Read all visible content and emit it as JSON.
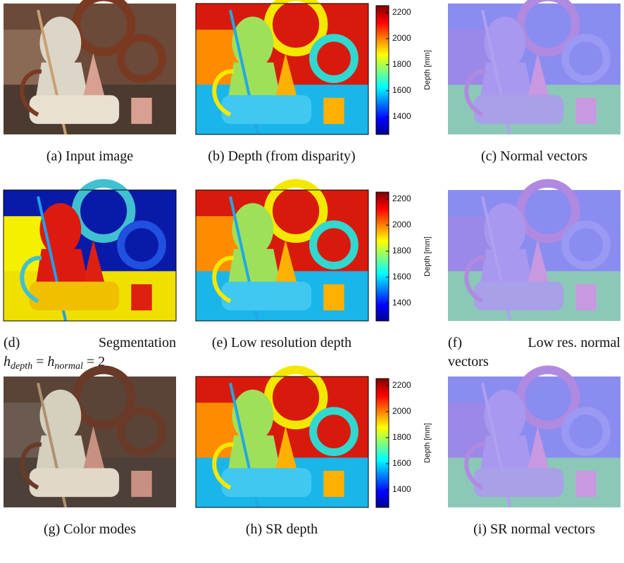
{
  "panels": [
    {
      "caption": "(a) Input image"
    },
    {
      "caption": "(b) Depth (from disparity)"
    },
    {
      "caption": "(c) Normal vectors"
    },
    {
      "caption": "(d)",
      "caption_text": "Segmentation",
      "formula": [
        "h",
        "depth",
        " = ",
        "h",
        "normal",
        " = 2"
      ]
    },
    {
      "caption": "(e) Low resolution depth"
    },
    {
      "caption": "(f)",
      "caption_text": "Low res. normal",
      "caption_line2": "vectors"
    },
    {
      "caption": "(g) Color modes"
    },
    {
      "caption": "(h) SR depth"
    },
    {
      "caption": "(i) SR normal vectors"
    }
  ],
  "colorbar": {
    "label": "Depth [mm]",
    "lim": [
      1264,
      2254
    ],
    "ticks": [
      1400,
      1600,
      1800,
      2000,
      2200
    ]
  }
}
